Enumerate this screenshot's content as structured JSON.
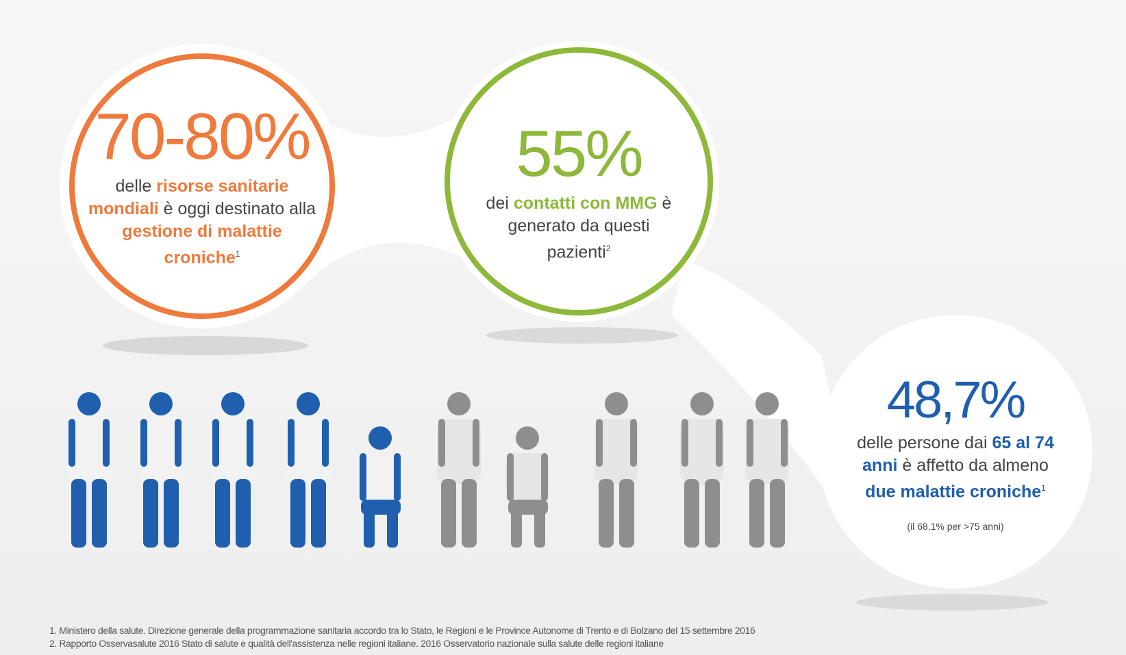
{
  "stats": [
    {
      "figure": "70-80%",
      "segments": [
        "delle",
        "risorse sanitarie mondiali",
        "è oggi destinato alla",
        "gestione di malattie croniche",
        "1"
      ]
    },
    {
      "figure": "55%",
      "segments": [
        "dei",
        "contatti con MMG",
        "è generato da questi pazienti",
        "2"
      ]
    },
    {
      "figure": "48,7%",
      "segments": [
        "delle persone dai",
        "65 al 74 anni",
        "è affetto da almeno",
        "due malattie croniche",
        "1"
      ],
      "note": "(il 68,1% per >75 anni)"
    }
  ],
  "footnotes": [
    "1. Ministero della salute. Direzione generale della programmazione sanitaria accordo tra lo Stato, le Regioni e le Province Autonome di Trento e di Bolzano del 15 settembre 2016",
    "2. Rapporto Osservasalute 2016 Stato di salute e qualità dell'assistenza nelle regioni italiane. 2016 Osservatorio nazionale sulla salute delle regioni italiane"
  ]
}
